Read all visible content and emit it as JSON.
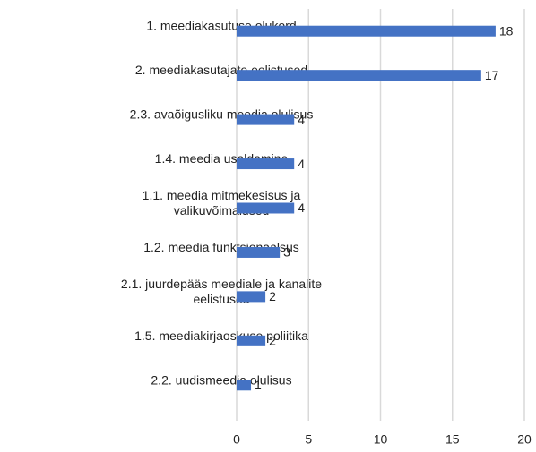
{
  "chart_data": {
    "type": "bar",
    "orientation": "horizontal",
    "categories": [
      "1. meediakasutuse olukord",
      "2. meediakasutajate eelistused",
      "2.3. avaõigusliku meedia olulisus",
      "1.4. meedia usaldamine",
      "1.1. meedia mitmekesisus ja valikuvõimalused",
      "1.2. meedia funktsionaalsus",
      "2.1. juurdepääs meediale ja kanalite eelistused",
      "1.5. meediakirjaoskuse poliitika",
      "2.2. uudismeedia olulisus"
    ],
    "values": [
      18,
      17,
      4,
      4,
      4,
      3,
      2,
      2,
      1
    ],
    "color": "#4472c4",
    "xlim": [
      0,
      20
    ],
    "xticks": [
      0,
      5,
      10,
      15,
      20
    ],
    "grid": true
  }
}
